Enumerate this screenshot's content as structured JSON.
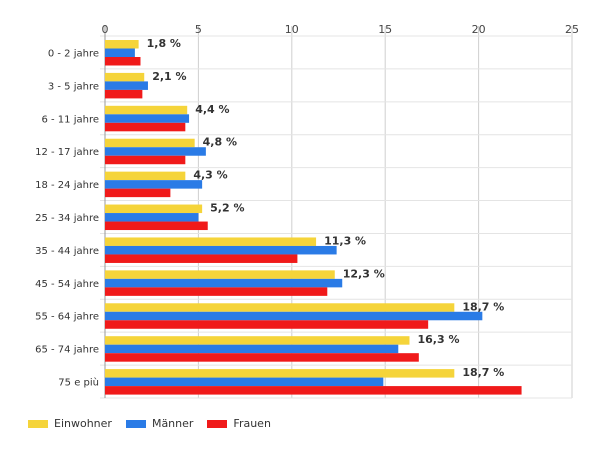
{
  "chart_data": {
    "type": "bar",
    "orientation": "horizontal",
    "categories": [
      "0 - 2 jahre",
      "3 - 5 jahre",
      "6 - 11 jahre",
      "12 - 17 jahre",
      "18 - 24 jahre",
      "25 - 34 jahre",
      "35 - 44 jahre",
      "45 - 54 jahre",
      "55 - 64 jahre",
      "65 - 74 jahre",
      "75 e più"
    ],
    "series": [
      {
        "name": "Einwohner",
        "color": "#f5d43a",
        "values": [
          1.8,
          2.1,
          4.4,
          4.8,
          4.3,
          5.2,
          11.3,
          12.3,
          18.7,
          16.3,
          18.7
        ]
      },
      {
        "name": "Männer",
        "color": "#2a7be6",
        "values": [
          1.6,
          2.3,
          4.5,
          5.4,
          5.2,
          5.0,
          12.4,
          12.7,
          20.2,
          15.7,
          14.9
        ]
      },
      {
        "name": "Frauen",
        "color": "#f01a1a",
        "values": [
          1.9,
          2.0,
          4.3,
          4.3,
          3.5,
          5.5,
          10.3,
          11.9,
          17.3,
          16.8,
          22.3
        ]
      }
    ],
    "data_labels": [
      "1,8 %",
      "2,1 %",
      "4,4 %",
      "4,8 %",
      "4,3 %",
      "5,2 %",
      "11,3 %",
      "12,3 %",
      "18,7 %",
      "16,3 %",
      "18,7 %"
    ],
    "xlim": [
      0,
      25
    ],
    "x_ticks": [
      0,
      5,
      10,
      15,
      20,
      25
    ],
    "grid": true,
    "legend_position": "bottom-left",
    "title": "",
    "xlabel": "",
    "ylabel": ""
  }
}
